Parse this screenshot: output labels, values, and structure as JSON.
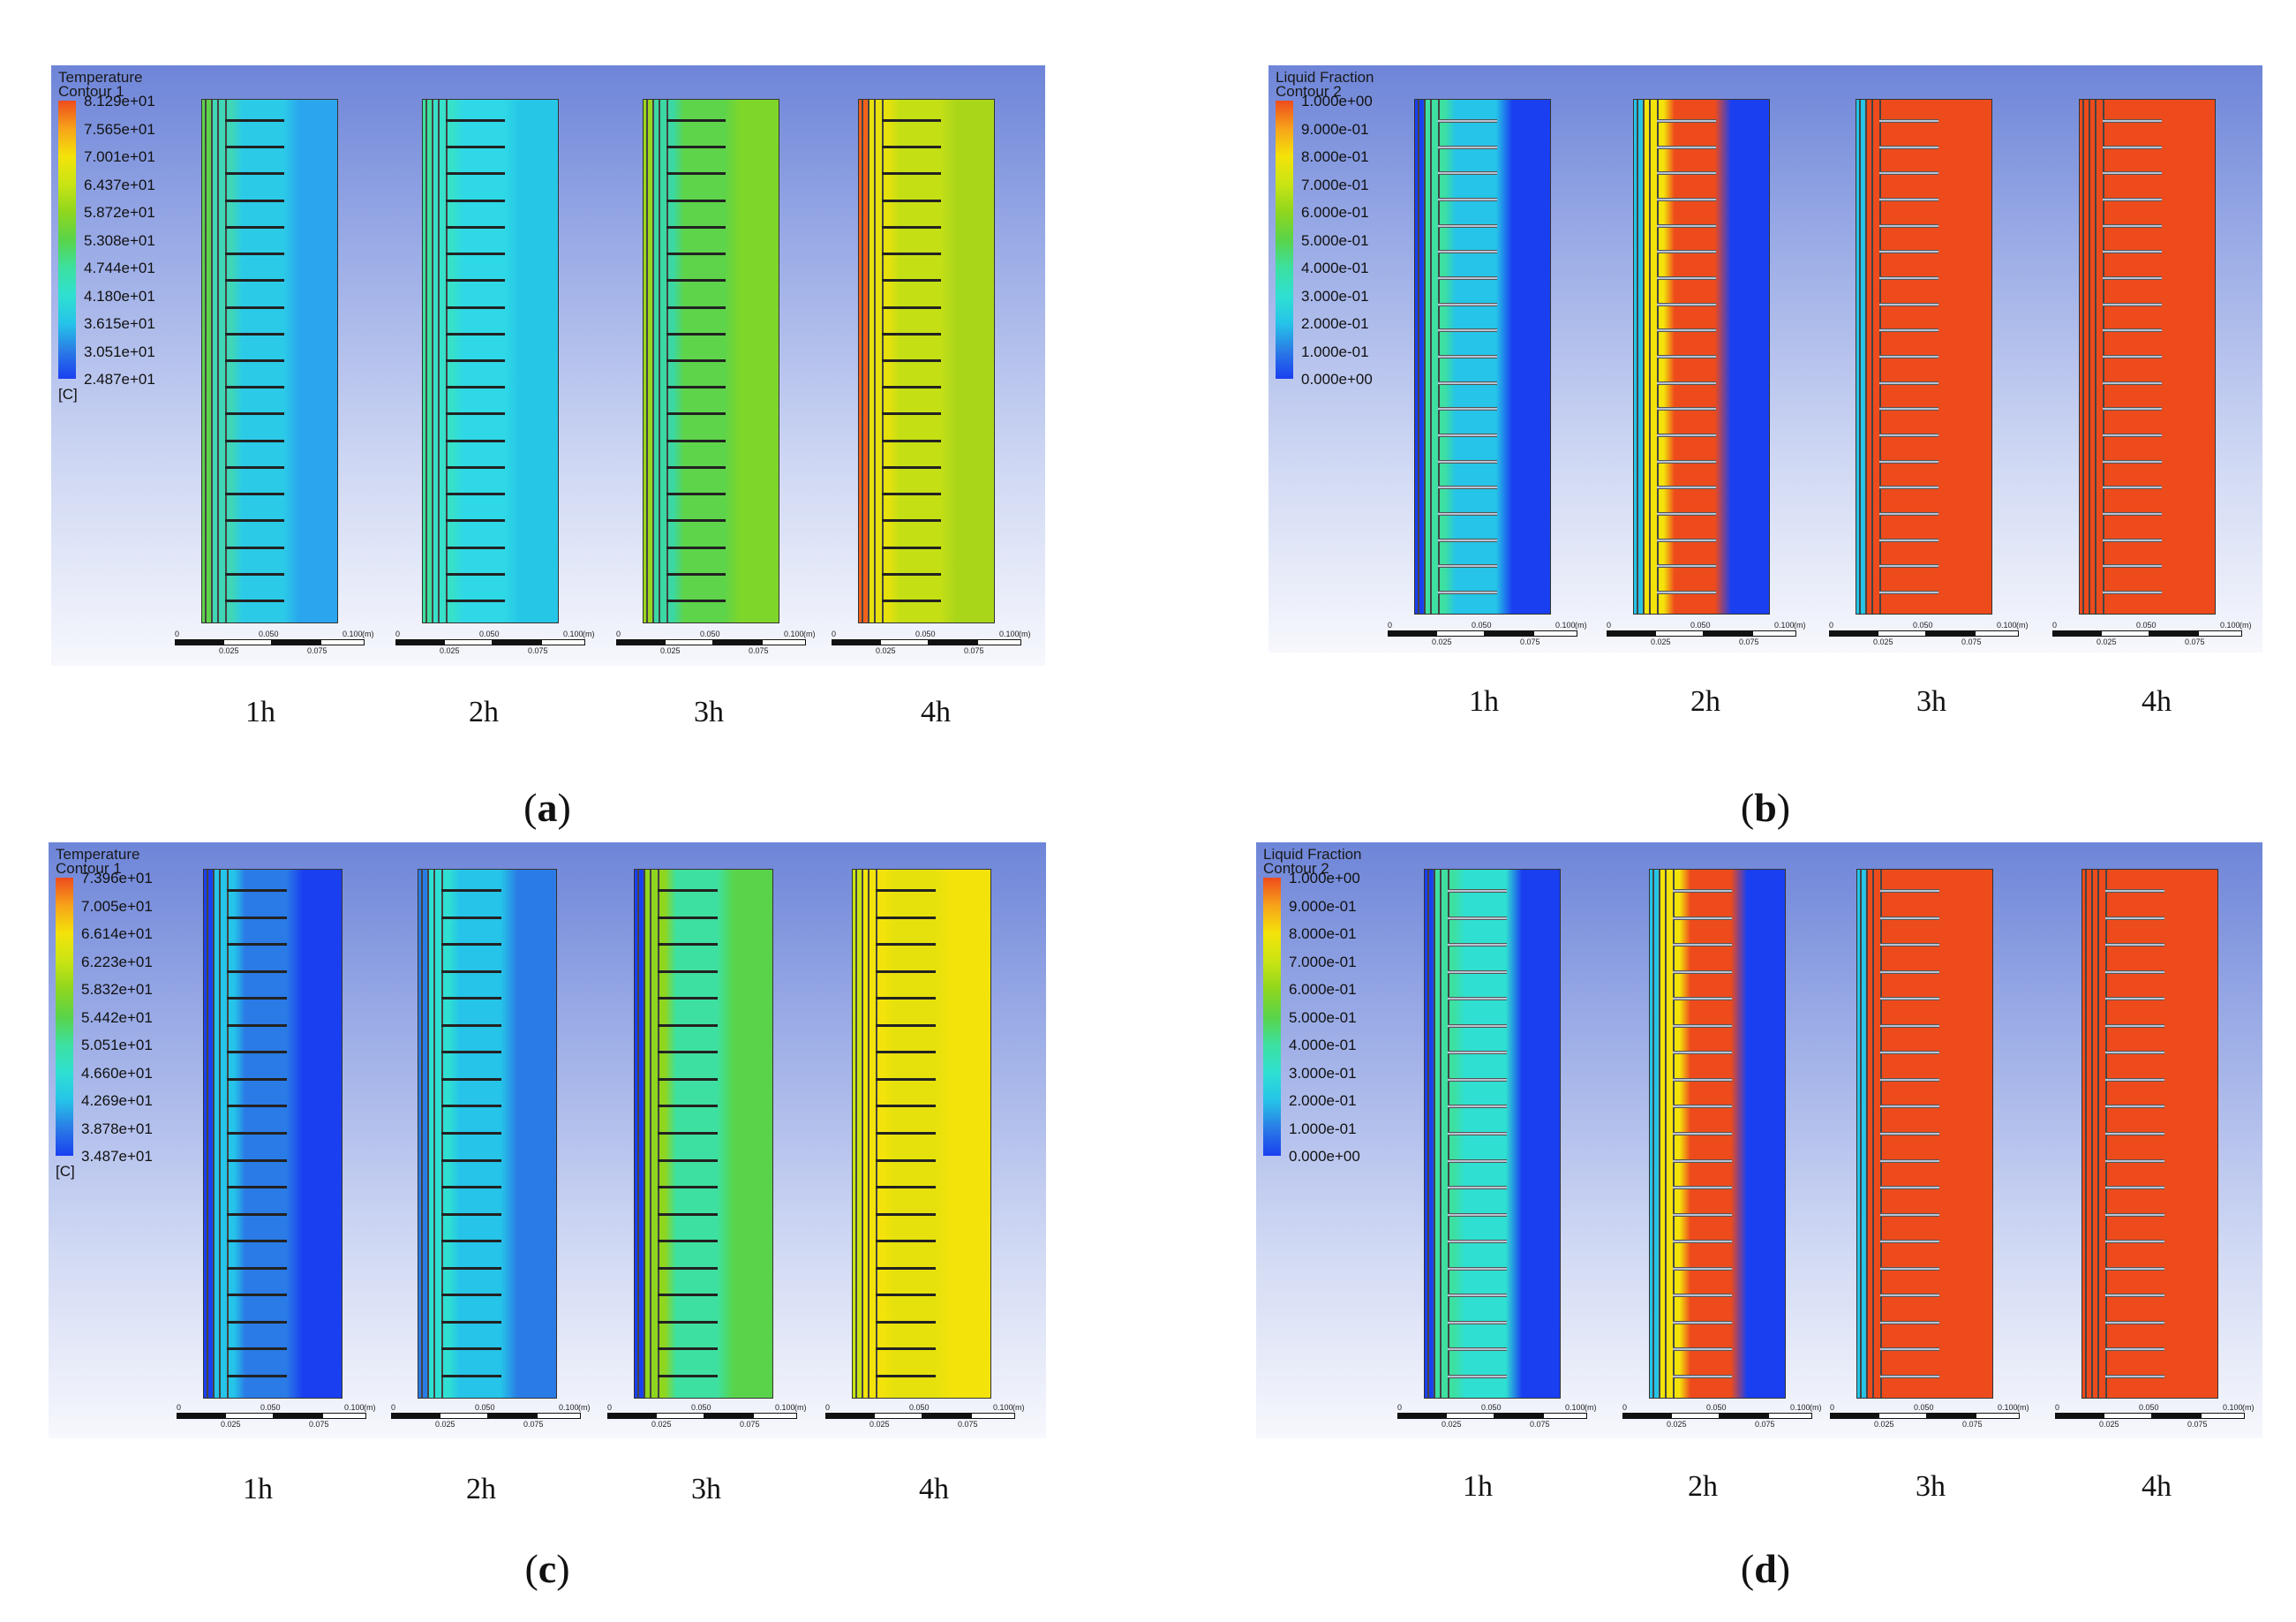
{
  "colors": {
    "t_scale": [
      "#1a3ff0",
      "#2a7be6",
      "#25c4e8",
      "#2fe0d2",
      "#3de0a0",
      "#59d44a",
      "#8fd61e",
      "#c8e414",
      "#f4e30a",
      "#f7a41a",
      "#ee4b1c"
    ],
    "lf_scale": [
      "#1a3ff0",
      "#2a7be6",
      "#25c4e8",
      "#2fe0d2",
      "#3de0a0",
      "#59d44a",
      "#8fd61e",
      "#c8e414",
      "#f4e30a",
      "#f7a41a",
      "#ee4b1c"
    ]
  },
  "panels": [
    {
      "id": "a",
      "caption": "a",
      "legend_line1": "Temperature",
      "legend_line2": "Contour 1",
      "unit": "[C]",
      "scale": [
        "8.129e+01",
        "7.565e+01",
        "7.001e+01",
        "6.437e+01",
        "5.872e+01",
        "5.308e+01",
        "4.744e+01",
        "4.180e+01",
        "3.615e+01",
        "3.051e+01",
        "2.487e+01"
      ],
      "times": [
        "1h",
        "2h",
        "3h",
        "4h"
      ],
      "ruler_top": [
        "0",
        "0.050",
        "0.100",
        "(m)"
      ],
      "ruler_bottom": [
        "0.025",
        "0.075"
      ],
      "states": [
        {
          "bg": "#2aa6ee",
          "pcm": "#2bcbe8",
          "near": "#40d6b6",
          "hot": "#5fd24a"
        },
        {
          "bg": "#25c6e6",
          "pcm": "#2fd8e6",
          "near": "#36e0c9",
          "hot": "#3de0a0"
        },
        {
          "bg": "#7fd62a",
          "pcm": "#5ed44a",
          "near": "#3bd8a4",
          "hot": "#9ad61c"
        },
        {
          "bg": "#aad61a",
          "pcm": "#c5df15",
          "near": "#e6e10c",
          "hot": "#f2601c"
        }
      ]
    },
    {
      "id": "b",
      "caption": "b",
      "legend_line1": "Liquid Fraction",
      "legend_line2": "Contour 2",
      "unit": "",
      "scale": [
        "1.000e+00",
        "9.000e-01",
        "8.000e-01",
        "7.000e-01",
        "6.000e-01",
        "5.000e-01",
        "4.000e-01",
        "3.000e-01",
        "2.000e-01",
        "1.000e-01",
        "0.000e+00"
      ],
      "times": [
        "1h",
        "2h",
        "3h",
        "4h"
      ],
      "ruler_top": [
        "0",
        "0.050",
        "0.100",
        "(m)"
      ],
      "ruler_bottom": [
        "0.025",
        "0.075"
      ],
      "states": [
        {
          "bg": "#1a3ff0",
          "pcm": "#25c4e8",
          "near": "#3de0a0",
          "hot": "#1a3ff0"
        },
        {
          "bg": "#1a3ff0",
          "pcm": "#ee4b1c",
          "near": "#f4e30a",
          "hot": "#25c4e8"
        },
        {
          "bg": "#ee4b1c",
          "pcm": "#ee4b1c",
          "near": "#ee4b1c",
          "hot": "#25c4e8"
        },
        {
          "bg": "#ee4b1c",
          "pcm": "#ee4b1c",
          "near": "#ee4b1c",
          "hot": "#ee4b1c"
        }
      ]
    },
    {
      "id": "c",
      "caption": "c",
      "legend_line1": "Temperature",
      "legend_line2": "Contour 1",
      "unit": "[C]",
      "scale": [
        "7.396e+01",
        "7.005e+01",
        "6.614e+01",
        "6.223e+01",
        "5.832e+01",
        "5.442e+01",
        "5.051e+01",
        "4.660e+01",
        "4.269e+01",
        "3.878e+01",
        "3.487e+01"
      ],
      "times": [
        "1h",
        "2h",
        "3h",
        "4h"
      ],
      "ruler_top": [
        "0",
        "0.050",
        "0.100",
        "(m)"
      ],
      "ruler_bottom": [
        "0.025",
        "0.075"
      ],
      "states": [
        {
          "bg": "#1a3ff0",
          "pcm": "#2a7be6",
          "near": "#25c4e8",
          "hot": "#1a3ff0"
        },
        {
          "bg": "#2a7be6",
          "pcm": "#25c4e8",
          "near": "#2fe0d2",
          "hot": "#2a7be6"
        },
        {
          "bg": "#59d44a",
          "pcm": "#3de0a0",
          "near": "#8fd61e",
          "hot": "#1a3ff0"
        },
        {
          "bg": "#f4e30a",
          "pcm": "#e6e10c",
          "near": "#f4e30a",
          "hot": "#c8e414"
        }
      ]
    },
    {
      "id": "d",
      "caption": "d",
      "legend_line1": "Liquid Fraction",
      "legend_line2": "Contour 2",
      "unit": "",
      "scale": [
        "1.000e+00",
        "9.000e-01",
        "8.000e-01",
        "7.000e-01",
        "6.000e-01",
        "5.000e-01",
        "4.000e-01",
        "3.000e-01",
        "2.000e-01",
        "1.000e-01",
        "0.000e+00"
      ],
      "times": [
        "1h",
        "2h",
        "3h",
        "4h"
      ],
      "ruler_top": [
        "0",
        "0.050",
        "0.100",
        "(m)"
      ],
      "ruler_bottom": [
        "0.025",
        "0.075"
      ],
      "states": [
        {
          "bg": "#1a3ff0",
          "pcm": "#2fe0d2",
          "near": "#3de0a0",
          "hot": "#1a3ff0"
        },
        {
          "bg": "#1a3ff0",
          "pcm": "#ee4b1c",
          "near": "#f4e30a",
          "hot": "#25c4e8"
        },
        {
          "bg": "#ee4b1c",
          "pcm": "#ee4b1c",
          "near": "#ee4b1c",
          "hot": "#25c4e8"
        },
        {
          "bg": "#ee4b1c",
          "pcm": "#ee4b1c",
          "near": "#ee4b1c",
          "hot": "#ee4b1c"
        }
      ]
    }
  ]
}
